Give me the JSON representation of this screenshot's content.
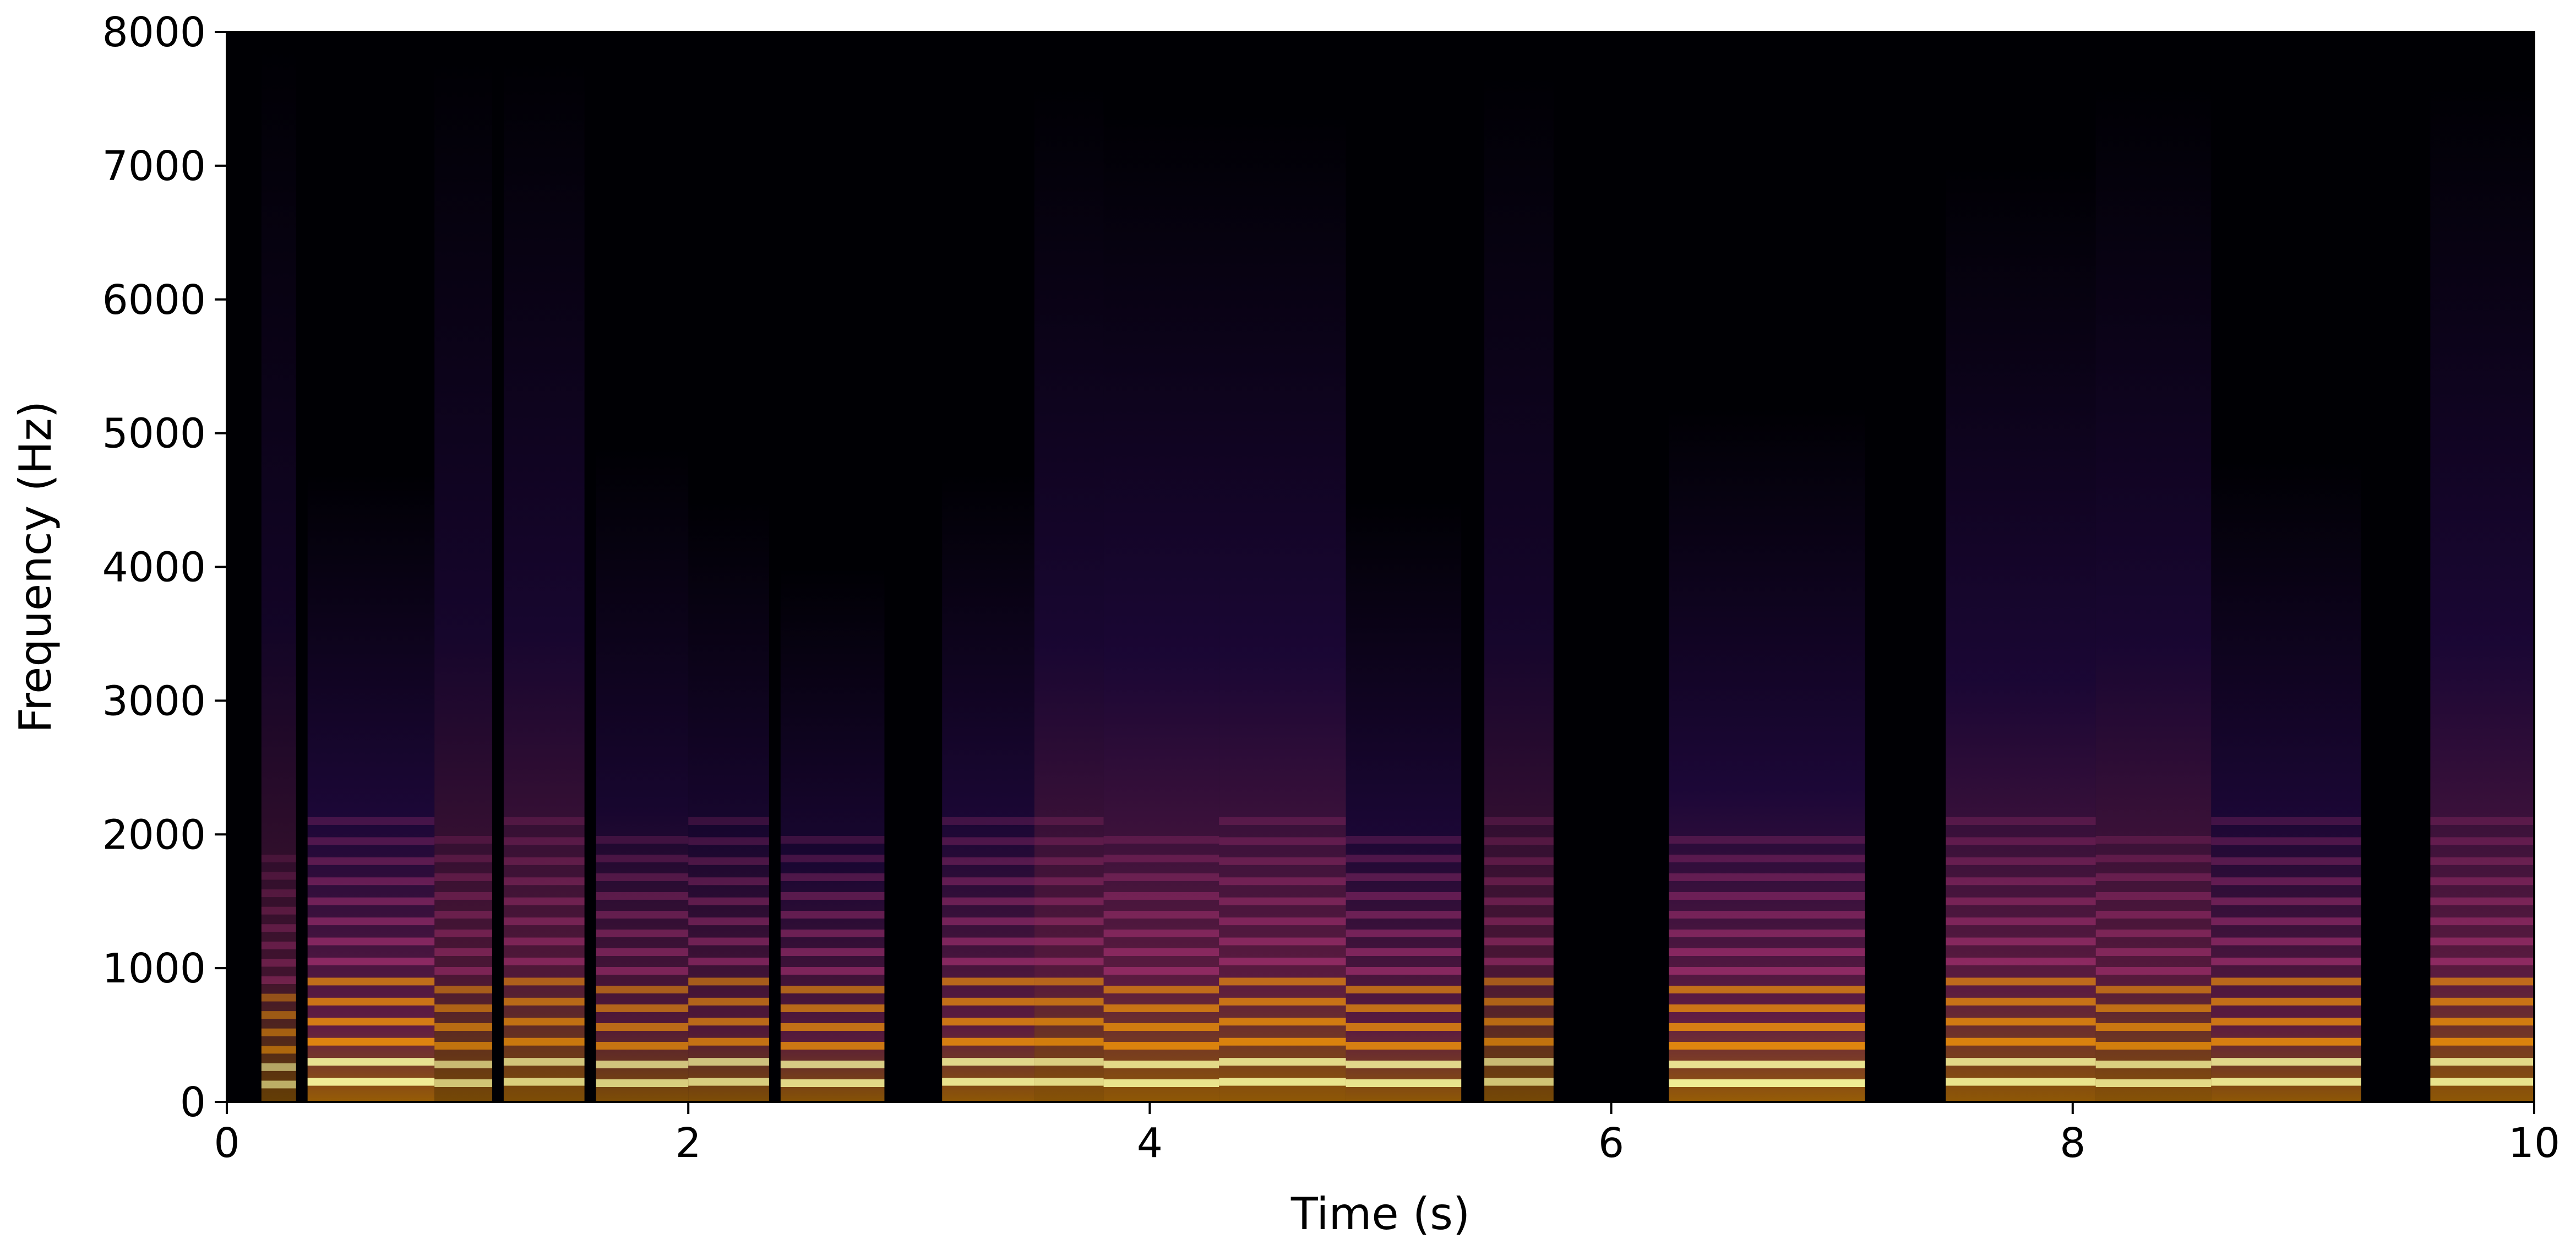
{
  "chart_data": {
    "type": "heatmap",
    "subtype": "spectrogram",
    "title": "",
    "xlabel": "Time (s)",
    "ylabel": "Frequency (Hz)",
    "xlim": [
      0,
      10
    ],
    "ylim": [
      0,
      8000
    ],
    "xticks": [
      0,
      2,
      4,
      6,
      8,
      10
    ],
    "yticks": [
      0,
      1000,
      2000,
      3000,
      4000,
      5000,
      6000,
      7000,
      8000
    ],
    "grid": false,
    "colormap": "inferno",
    "colors": {
      "background": "#000004",
      "low": "#3b0f70",
      "mid": "#b5367a",
      "high": "#fb9b06",
      "peak": "#fcffa4"
    },
    "segments": [
      {
        "start": 0.15,
        "end": 0.3,
        "f0": 130,
        "maxfreq": 7900,
        "intensity": 0.6
      },
      {
        "start": 0.35,
        "end": 0.9,
        "f0": 150,
        "maxfreq": 4700,
        "intensity": 0.9
      },
      {
        "start": 0.9,
        "end": 1.15,
        "f0": 140,
        "maxfreq": 7800,
        "intensity": 0.7
      },
      {
        "start": 1.2,
        "end": 1.55,
        "f0": 150,
        "maxfreq": 7800,
        "intensity": 0.75
      },
      {
        "start": 1.6,
        "end": 2.0,
        "f0": 140,
        "maxfreq": 4900,
        "intensity": 0.75
      },
      {
        "start": 2.0,
        "end": 2.35,
        "f0": 150,
        "maxfreq": 4500,
        "intensity": 0.75
      },
      {
        "start": 2.4,
        "end": 2.85,
        "f0": 140,
        "maxfreq": 4000,
        "intensity": 0.8
      },
      {
        "start": 3.1,
        "end": 3.5,
        "f0": 150,
        "maxfreq": 4700,
        "intensity": 0.85
      },
      {
        "start": 3.5,
        "end": 3.8,
        "f0": 150,
        "maxfreq": 7600,
        "intensity": 0.8
      },
      {
        "start": 3.8,
        "end": 4.3,
        "f0": 140,
        "maxfreq": 7400,
        "intensity": 0.85
      },
      {
        "start": 4.3,
        "end": 4.85,
        "f0": 150,
        "maxfreq": 7400,
        "intensity": 0.85
      },
      {
        "start": 4.85,
        "end": 5.35,
        "f0": 140,
        "maxfreq": 4500,
        "intensity": 0.85
      },
      {
        "start": 5.45,
        "end": 5.75,
        "f0": 150,
        "maxfreq": 7700,
        "intensity": 0.7
      },
      {
        "start": 6.25,
        "end": 7.1,
        "f0": 140,
        "maxfreq": 5200,
        "intensity": 0.9
      },
      {
        "start": 7.45,
        "end": 8.1,
        "f0": 150,
        "maxfreq": 7000,
        "intensity": 0.85
      },
      {
        "start": 8.1,
        "end": 8.6,
        "f0": 140,
        "maxfreq": 7600,
        "intensity": 0.8
      },
      {
        "start": 8.6,
        "end": 9.25,
        "f0": 150,
        "maxfreq": 4800,
        "intensity": 0.85
      },
      {
        "start": 9.55,
        "end": 10.0,
        "f0": 150,
        "maxfreq": 7600,
        "intensity": 0.85
      }
    ]
  }
}
